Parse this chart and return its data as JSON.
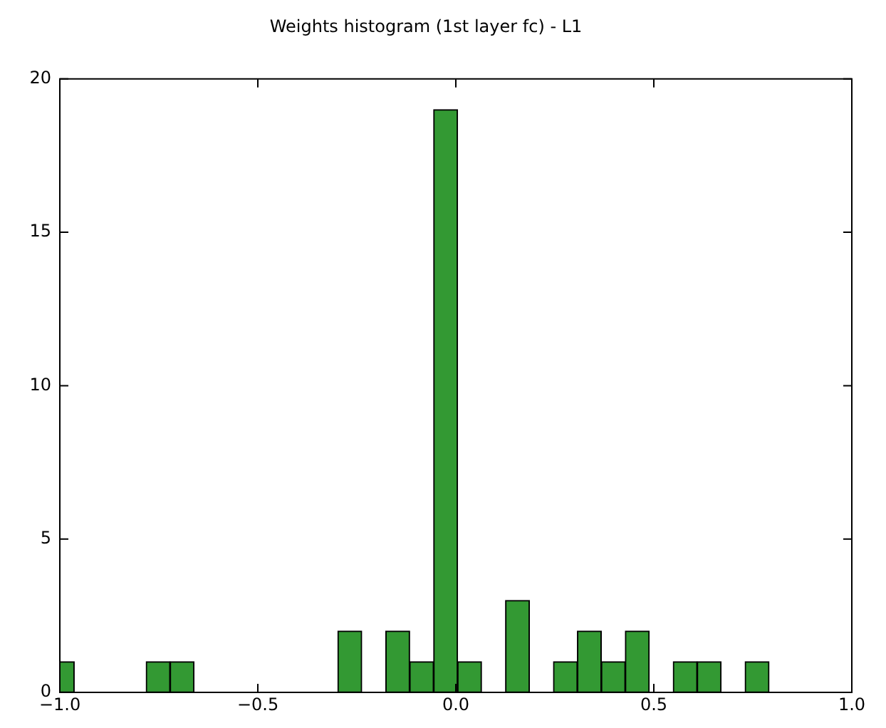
{
  "chart_data": {
    "type": "histogram",
    "title": "Weights histogram (1st layer fc) - L1",
    "bins": [
      -1.024,
      -0.9635,
      -0.903,
      -0.8425,
      -0.782,
      -0.7215,
      -0.661,
      -0.6005,
      -0.54,
      -0.4795,
      -0.419,
      -0.3585,
      -0.298,
      -0.2375,
      -0.177,
      -0.1165,
      -0.056,
      0.0045,
      0.065,
      0.1255,
      0.186,
      0.2465,
      0.307,
      0.3675,
      0.428,
      0.4885,
      0.549,
      0.6095,
      0.67,
      0.7305,
      0.791
    ],
    "values": [
      1,
      0,
      0,
      0,
      1,
      1,
      0,
      0,
      0,
      0,
      0,
      0,
      2,
      0,
      2,
      1,
      19,
      1,
      0,
      3,
      0,
      1,
      2,
      1,
      2,
      0,
      1,
      1,
      0,
      1
    ],
    "color": "#339933",
    "xlim": [
      -1,
      1
    ],
    "xticks": [
      {
        "value": -1,
        "label": "−1.0"
      },
      {
        "value": -0.5,
        "label": "−0.5"
      },
      {
        "value": 0,
        "label": "0.0"
      },
      {
        "value": 0.5,
        "label": "0.5"
      },
      {
        "value": 1,
        "label": "1.0"
      }
    ],
    "ylim": [
      0,
      20
    ],
    "yticks": [
      0,
      5,
      10,
      15,
      20
    ],
    "grid": false,
    "legend": false
  }
}
